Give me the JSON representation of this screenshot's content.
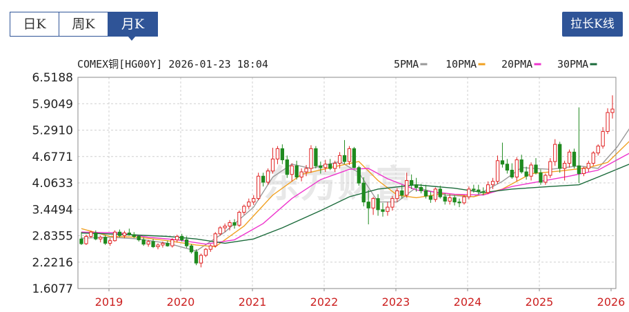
{
  "tabs": [
    {
      "label": "日K",
      "active": false
    },
    {
      "label": "周K",
      "active": false
    },
    {
      "label": "月K",
      "active": true
    }
  ],
  "toggle_button_label": "拉长K线",
  "chart_title": "COMEX铜[HG00Y] 2026-01-23 18:04",
  "watermark": "东方财富",
  "colors": {
    "accent": "#2f5497",
    "up": "#e02020",
    "down": "#1f8a1f",
    "ma5": "#999999",
    "ma10": "#f0a020",
    "ma20": "#ee33cc",
    "ma30": "#1a6a3a",
    "grid": "#cfcfcf",
    "xlabel": "#cc2020"
  },
  "chart_data": {
    "type": "candlestick",
    "title": "COMEX铜[HG00Y] 2026-01-23 18:04",
    "legend": [
      {
        "name": "5PMA",
        "color": "#999999"
      },
      {
        "name": "10PMA",
        "color": "#f0a020"
      },
      {
        "name": "20PMA",
        "color": "#ee33cc"
      },
      {
        "name": "30PMA",
        "color": "#1a6a3a"
      }
    ],
    "legend_position": "top-right",
    "y_ticks": [
      "6.5188",
      "5.9049",
      "5.2910",
      "4.6771",
      "4.0633",
      "3.4494",
      "2.8355",
      "2.2216",
      "1.6077"
    ],
    "ylim": [
      1.6077,
      6.5188
    ],
    "x_ticks": [
      "2019",
      "2020",
      "2021",
      "2022",
      "2023",
      "2024",
      "2025",
      "2026"
    ],
    "grid": true,
    "ohlc": [
      [
        2.76,
        2.92,
        2.62,
        2.65
      ],
      [
        2.65,
        2.86,
        2.62,
        2.82
      ],
      [
        2.82,
        2.95,
        2.78,
        2.92
      ],
      [
        2.9,
        2.96,
        2.73,
        2.76
      ],
      [
        2.76,
        2.84,
        2.68,
        2.8
      ],
      [
        2.8,
        2.85,
        2.62,
        2.66
      ],
      [
        2.66,
        2.78,
        2.6,
        2.72
      ],
      [
        2.72,
        2.96,
        2.7,
        2.92
      ],
      [
        2.92,
        2.98,
        2.8,
        2.84
      ],
      [
        2.84,
        2.95,
        2.78,
        2.9
      ],
      [
        2.9,
        3.0,
        2.84,
        2.86
      ],
      [
        2.86,
        2.92,
        2.78,
        2.82
      ],
      [
        2.82,
        2.86,
        2.7,
        2.74
      ],
      [
        2.74,
        2.8,
        2.6,
        2.64
      ],
      [
        2.64,
        2.74,
        2.58,
        2.7
      ],
      [
        2.7,
        2.76,
        2.55,
        2.58
      ],
      [
        2.58,
        2.66,
        2.52,
        2.62
      ],
      [
        2.62,
        2.7,
        2.56,
        2.66
      ],
      [
        2.66,
        2.72,
        2.58,
        2.6
      ],
      [
        2.6,
        2.78,
        2.56,
        2.74
      ],
      [
        2.74,
        2.86,
        2.68,
        2.82
      ],
      [
        2.82,
        2.88,
        2.7,
        2.74
      ],
      [
        2.74,
        2.82,
        2.55,
        2.6
      ],
      [
        2.6,
        2.64,
        2.42,
        2.46
      ],
      [
        2.46,
        2.52,
        2.15,
        2.2
      ],
      [
        2.2,
        2.42,
        2.1,
        2.38
      ],
      [
        2.38,
        2.55,
        2.34,
        2.52
      ],
      [
        2.52,
        2.64,
        2.46,
        2.6
      ],
      [
        2.6,
        2.92,
        2.56,
        2.88
      ],
      [
        2.88,
        3.06,
        2.84,
        3.02
      ],
      [
        3.02,
        3.12,
        2.92,
        3.06
      ],
      [
        3.06,
        3.2,
        2.96,
        3.14
      ],
      [
        3.14,
        3.22,
        3.0,
        3.08
      ],
      [
        3.08,
        3.42,
        3.04,
        3.38
      ],
      [
        3.38,
        3.56,
        3.32,
        3.52
      ],
      [
        3.52,
        3.7,
        3.46,
        3.62
      ],
      [
        3.62,
        3.78,
        3.55,
        3.7
      ],
      [
        3.7,
        4.3,
        3.66,
        4.22
      ],
      [
        4.22,
        4.3,
        3.98,
        4.08
      ],
      [
        4.08,
        4.4,
        4.02,
        4.34
      ],
      [
        4.34,
        4.88,
        4.28,
        4.62
      ],
      [
        4.62,
        4.92,
        4.5,
        4.86
      ],
      [
        4.86,
        4.96,
        4.5,
        4.6
      ],
      [
        4.6,
        4.7,
        4.18,
        4.26
      ],
      [
        4.26,
        4.52,
        4.1,
        4.46
      ],
      [
        4.46,
        4.58,
        4.14,
        4.2
      ],
      [
        4.2,
        4.4,
        4.1,
        4.32
      ],
      [
        4.32,
        4.48,
        4.22,
        4.4
      ],
      [
        4.4,
        4.94,
        4.3,
        4.86
      ],
      [
        4.86,
        4.92,
        4.4,
        4.46
      ],
      [
        4.46,
        4.56,
        4.28,
        4.42
      ],
      [
        4.42,
        4.6,
        4.32,
        4.5
      ],
      [
        4.5,
        4.62,
        4.36,
        4.4
      ],
      [
        4.4,
        4.58,
        4.32,
        4.52
      ],
      [
        4.52,
        4.78,
        4.4,
        4.7
      ],
      [
        4.7,
        5.06,
        4.5,
        4.56
      ],
      [
        4.56,
        4.92,
        4.48,
        4.86
      ],
      [
        4.86,
        4.9,
        4.4,
        4.42
      ],
      [
        4.42,
        4.46,
        4.0,
        4.06
      ],
      [
        4.06,
        4.2,
        3.52,
        3.62
      ],
      [
        3.62,
        3.9,
        3.1,
        3.48
      ],
      [
        3.48,
        3.74,
        3.32,
        3.7
      ],
      [
        3.7,
        3.8,
        3.3,
        3.44
      ],
      [
        3.44,
        3.6,
        3.28,
        3.4
      ],
      [
        3.4,
        3.62,
        3.3,
        3.5
      ],
      [
        3.5,
        3.76,
        3.42,
        3.7
      ],
      [
        3.7,
        3.94,
        3.62,
        3.88
      ],
      [
        3.88,
        4.02,
        3.7,
        3.78
      ],
      [
        3.78,
        4.3,
        3.72,
        4.12
      ],
      [
        4.12,
        4.26,
        3.92,
        4.02
      ],
      [
        4.02,
        4.18,
        3.86,
        3.96
      ],
      [
        3.96,
        4.04,
        3.82,
        3.88
      ],
      [
        3.88,
        4.02,
        3.7,
        3.76
      ],
      [
        3.76,
        3.86,
        3.6,
        3.68
      ],
      [
        3.68,
        3.96,
        3.62,
        3.92
      ],
      [
        3.92,
        4.0,
        3.7,
        3.74
      ],
      [
        3.74,
        3.82,
        3.56,
        3.64
      ],
      [
        3.64,
        3.8,
        3.56,
        3.72
      ],
      [
        3.72,
        3.78,
        3.54,
        3.62
      ],
      [
        3.62,
        3.7,
        3.5,
        3.6
      ],
      [
        3.6,
        3.78,
        3.56,
        3.74
      ],
      [
        3.74,
        3.98,
        3.68,
        3.92
      ],
      [
        3.92,
        4.02,
        3.84,
        3.9
      ],
      [
        3.9,
        4.02,
        3.8,
        3.86
      ],
      [
        3.86,
        3.96,
        3.78,
        3.84
      ],
      [
        3.84,
        4.1,
        3.8,
        4.02
      ],
      [
        4.02,
        4.18,
        3.92,
        4.1
      ],
      [
        4.1,
        4.7,
        4.04,
        4.58
      ],
      [
        4.58,
        5.0,
        4.42,
        4.5
      ],
      [
        4.5,
        4.62,
        4.28,
        4.36
      ],
      [
        4.36,
        4.52,
        4.16,
        4.2
      ],
      [
        4.2,
        4.66,
        4.1,
        4.6
      ],
      [
        4.6,
        4.72,
        4.28,
        4.32
      ],
      [
        4.32,
        4.44,
        4.14,
        4.22
      ],
      [
        4.22,
        4.54,
        4.12,
        4.48
      ],
      [
        4.48,
        4.64,
        4.26,
        4.3
      ],
      [
        4.3,
        4.38,
        4.02,
        4.08
      ],
      [
        4.08,
        4.28,
        4.02,
        4.24
      ],
      [
        4.24,
        4.64,
        4.18,
        4.56
      ],
      [
        4.56,
        5.08,
        4.46,
        4.96
      ],
      [
        4.96,
        5.02,
        4.3,
        4.4
      ],
      [
        4.4,
        4.58,
        4.12,
        4.52
      ],
      [
        4.52,
        4.84,
        4.42,
        4.78
      ],
      [
        4.78,
        4.86,
        4.4,
        4.46
      ],
      [
        4.46,
        5.82,
        4.06,
        4.28
      ],
      [
        4.28,
        4.44,
        4.22,
        4.4
      ],
      [
        4.4,
        4.58,
        4.32,
        4.52
      ],
      [
        4.52,
        4.8,
        4.46,
        4.76
      ],
      [
        4.76,
        4.96,
        4.7,
        4.92
      ],
      [
        4.92,
        5.36,
        4.86,
        5.26
      ],
      [
        5.26,
        5.8,
        5.2,
        5.7
      ],
      [
        5.7,
        6.1,
        5.56,
        5.78
      ]
    ],
    "ma5": [
      [
        0,
        2.78
      ],
      [
        6,
        2.8
      ],
      [
        12,
        2.76
      ],
      [
        18,
        2.66
      ],
      [
        24,
        2.48
      ],
      [
        30,
        2.92
      ],
      [
        36,
        3.5
      ],
      [
        40,
        4.2
      ],
      [
        44,
        4.5
      ],
      [
        48,
        4.4
      ],
      [
        54,
        4.56
      ],
      [
        58,
        4.3
      ],
      [
        62,
        3.62
      ],
      [
        66,
        3.62
      ],
      [
        70,
        3.96
      ],
      [
        76,
        3.78
      ],
      [
        82,
        3.74
      ],
      [
        88,
        4.1
      ],
      [
        92,
        4.42
      ],
      [
        98,
        4.38
      ],
      [
        104,
        4.46
      ],
      [
        108,
        4.4
      ],
      [
        112,
        4.9
      ],
      [
        115,
        5.4
      ]
    ],
    "ma10": [
      [
        0,
        3.0
      ],
      [
        6,
        2.82
      ],
      [
        12,
        2.8
      ],
      [
        18,
        2.72
      ],
      [
        24,
        2.62
      ],
      [
        28,
        2.58
      ],
      [
        34,
        3.06
      ],
      [
        40,
        3.78
      ],
      [
        46,
        4.26
      ],
      [
        52,
        4.42
      ],
      [
        58,
        4.56
      ],
      [
        62,
        4.12
      ],
      [
        66,
        3.78
      ],
      [
        70,
        3.72
      ],
      [
        76,
        3.82
      ],
      [
        82,
        3.74
      ],
      [
        88,
        3.92
      ],
      [
        94,
        4.28
      ],
      [
        100,
        4.34
      ],
      [
        106,
        4.42
      ],
      [
        110,
        4.54
      ],
      [
        115,
        5.08
      ]
    ],
    "ma20": [
      [
        0,
        2.92
      ],
      [
        8,
        2.9
      ],
      [
        14,
        2.8
      ],
      [
        20,
        2.74
      ],
      [
        26,
        2.64
      ],
      [
        32,
        2.74
      ],
      [
        38,
        3.12
      ],
      [
        44,
        3.7
      ],
      [
        50,
        4.14
      ],
      [
        56,
        4.38
      ],
      [
        60,
        4.4
      ],
      [
        64,
        4.16
      ],
      [
        70,
        3.9
      ],
      [
        78,
        3.8
      ],
      [
        84,
        3.78
      ],
      [
        90,
        3.98
      ],
      [
        96,
        4.1
      ],
      [
        102,
        4.22
      ],
      [
        108,
        4.36
      ],
      [
        115,
        4.78
      ]
    ],
    "ma30": [
      [
        0,
        2.9
      ],
      [
        10,
        2.86
      ],
      [
        18,
        2.82
      ],
      [
        24,
        2.76
      ],
      [
        30,
        2.66
      ],
      [
        36,
        2.76
      ],
      [
        42,
        3.02
      ],
      [
        50,
        3.42
      ],
      [
        56,
        3.74
      ],
      [
        62,
        3.92
      ],
      [
        70,
        4.02
      ],
      [
        78,
        3.94
      ],
      [
        84,
        3.84
      ],
      [
        90,
        3.92
      ],
      [
        98,
        3.98
      ],
      [
        104,
        4.02
      ],
      [
        108,
        4.2
      ],
      [
        115,
        4.52
      ]
    ]
  }
}
